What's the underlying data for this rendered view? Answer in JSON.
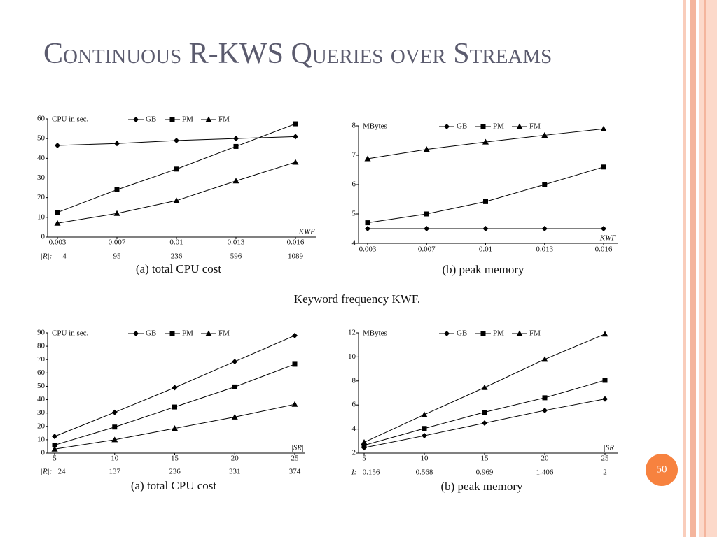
{
  "slide_title": "Continuous R-KWS Queries over Streams",
  "caption": "Keyword frequency KWF.",
  "page_number": "50",
  "chart_data": [
    {
      "type": "line",
      "subtitle": "(a) total CPU cost",
      "y_label": "CPU in sec.",
      "x_label": "KWF",
      "categories": [
        "0.003",
        "0.007",
        "0.01",
        "0.013",
        "0.016"
      ],
      "row_label": "|R|:",
      "row_values": [
        4,
        95,
        236,
        596,
        1089
      ],
      "ylim": [
        0,
        60
      ],
      "yticks": [
        0,
        10,
        20,
        30,
        40,
        50,
        60
      ],
      "series": [
        {
          "name": "GB",
          "color": "#000000",
          "marker": "diamond",
          "values": [
            46.5,
            47.5,
            49,
            50,
            51
          ]
        },
        {
          "name": "PM",
          "color": "#000000",
          "marker": "square",
          "values": [
            12.5,
            24,
            34.5,
            46,
            57.5
          ]
        },
        {
          "name": "FM",
          "color": "#000000",
          "marker": "triangle",
          "values": [
            7,
            12,
            18.5,
            28.5,
            38
          ]
        }
      ]
    },
    {
      "type": "line",
      "subtitle": "(b) peak memory",
      "y_label": "MBytes",
      "x_label": "KWF",
      "categories": [
        "0.003",
        "0.007",
        "0.01",
        "0.013",
        "0.016"
      ],
      "ylim": [
        4,
        8
      ],
      "yticks": [
        4,
        5,
        6,
        7,
        8
      ],
      "series": [
        {
          "name": "GB",
          "color": "#000000",
          "marker": "diamond",
          "values": [
            4.5,
            4.5,
            4.5,
            4.5,
            4.5
          ]
        },
        {
          "name": "PM",
          "color": "#000000",
          "marker": "square",
          "values": [
            4.7,
            5.0,
            5.42,
            6.0,
            6.6
          ]
        },
        {
          "name": "FM",
          "color": "#000000",
          "marker": "triangle",
          "values": [
            6.88,
            7.2,
            7.45,
            7.68,
            7.9
          ]
        }
      ]
    },
    {
      "type": "line",
      "subtitle": "(a) total CPU cost",
      "y_label": "CPU in sec.",
      "x_label": "|SR|",
      "categories": [
        "5",
        "10",
        "15",
        "20",
        "25"
      ],
      "row_label": "|R|:",
      "row_values": [
        24,
        137,
        236,
        331,
        374
      ],
      "ylim": [
        0,
        90
      ],
      "yticks": [
        0,
        10,
        20,
        30,
        40,
        50,
        60,
        70,
        80,
        90
      ],
      "series": [
        {
          "name": "GB",
          "color": "#000000",
          "marker": "diamond",
          "values": [
            12.5,
            30.5,
            49,
            68.5,
            88
          ]
        },
        {
          "name": "PM",
          "color": "#000000",
          "marker": "square",
          "values": [
            6,
            19.5,
            34.5,
            49.5,
            66.5
          ]
        },
        {
          "name": "FM",
          "color": "#000000",
          "marker": "triangle",
          "values": [
            3,
            10,
            18.5,
            27,
            36.5
          ]
        }
      ]
    },
    {
      "type": "line",
      "subtitle": "(b) peak memory",
      "y_label": "MBytes",
      "x_label": "|SR|",
      "categories": [
        "5",
        "10",
        "15",
        "20",
        "25"
      ],
      "row_label": "I:",
      "row_values": [
        0.156,
        0.568,
        0.969,
        1.406,
        2
      ],
      "ylim": [
        2,
        12
      ],
      "yticks": [
        2,
        4,
        6,
        8,
        10,
        12
      ],
      "series": [
        {
          "name": "GB",
          "color": "#000000",
          "marker": "diamond",
          "values": [
            2.45,
            3.45,
            4.5,
            5.55,
            6.5
          ]
        },
        {
          "name": "PM",
          "color": "#000000",
          "marker": "square",
          "values": [
            2.65,
            4.05,
            5.4,
            6.6,
            8.05
          ]
        },
        {
          "name": "FM",
          "color": "#000000",
          "marker": "triangle",
          "values": [
            2.9,
            5.2,
            7.45,
            9.8,
            11.9
          ]
        }
      ]
    }
  ]
}
